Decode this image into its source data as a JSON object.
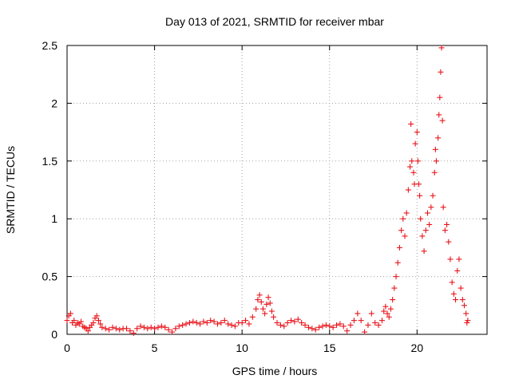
{
  "chart_data": {
    "type": "scatter",
    "title": "Day 013 of 2021, SRMTID for receiver mbar",
    "xlabel": "GPS time / hours",
    "ylabel": "SRMTID / TECUs",
    "xlim": [
      0,
      24
    ],
    "ylim": [
      0,
      2.5
    ],
    "grid": true,
    "marker": "+",
    "marker_color": "#e8141b",
    "x_ticks": [
      {
        "value": 0,
        "label": "0"
      },
      {
        "value": 5,
        "label": "5"
      },
      {
        "value": 10,
        "label": "10"
      },
      {
        "value": 15,
        "label": "15"
      },
      {
        "value": 20,
        "label": "20"
      }
    ],
    "y_ticks": [
      {
        "value": 0,
        "label": "0"
      },
      {
        "value": 0.5,
        "label": "0.5"
      },
      {
        "value": 1,
        "label": "1"
      },
      {
        "value": 1.5,
        "label": "1.5"
      },
      {
        "value": 2,
        "label": "2"
      },
      {
        "value": 2.5,
        "label": "2.5"
      }
    ],
    "series": [
      {
        "name": "SRMTID",
        "points": [
          [
            0.0,
            0.12
          ],
          [
            0.1,
            0.16
          ],
          [
            0.2,
            0.18
          ],
          [
            0.3,
            0.1
          ],
          [
            0.4,
            0.12
          ],
          [
            0.5,
            0.08
          ],
          [
            0.6,
            0.1
          ],
          [
            0.7,
            0.09
          ],
          [
            0.8,
            0.11
          ],
          [
            0.9,
            0.07
          ],
          [
            1.0,
            0.06
          ],
          [
            1.1,
            0.05
          ],
          [
            1.2,
            0.03
          ],
          [
            1.3,
            0.06
          ],
          [
            1.4,
            0.08
          ],
          [
            1.5,
            0.1
          ],
          [
            1.6,
            0.14
          ],
          [
            1.7,
            0.16
          ],
          [
            1.8,
            0.12
          ],
          [
            1.9,
            0.09
          ],
          [
            2.0,
            0.06
          ],
          [
            2.2,
            0.05
          ],
          [
            2.4,
            0.04
          ],
          [
            2.6,
            0.06
          ],
          [
            2.8,
            0.05
          ],
          [
            3.0,
            0.04
          ],
          [
            3.2,
            0.05
          ],
          [
            3.4,
            0.05
          ],
          [
            3.6,
            0.03
          ],
          [
            3.8,
            0.01
          ],
          [
            4.0,
            0.05
          ],
          [
            4.2,
            0.07
          ],
          [
            4.4,
            0.06
          ],
          [
            4.6,
            0.05
          ],
          [
            4.8,
            0.06
          ],
          [
            5.0,
            0.05
          ],
          [
            5.2,
            0.06
          ],
          [
            5.4,
            0.07
          ],
          [
            5.6,
            0.06
          ],
          [
            5.8,
            0.04
          ],
          [
            6.0,
            0.02
          ],
          [
            6.2,
            0.05
          ],
          [
            6.4,
            0.07
          ],
          [
            6.6,
            0.08
          ],
          [
            6.8,
            0.09
          ],
          [
            7.0,
            0.1
          ],
          [
            7.2,
            0.11
          ],
          [
            7.4,
            0.1
          ],
          [
            7.6,
            0.09
          ],
          [
            7.8,
            0.11
          ],
          [
            8.0,
            0.1
          ],
          [
            8.2,
            0.12
          ],
          [
            8.4,
            0.11
          ],
          [
            8.6,
            0.09
          ],
          [
            8.8,
            0.1
          ],
          [
            9.0,
            0.12
          ],
          [
            9.2,
            0.09
          ],
          [
            9.4,
            0.08
          ],
          [
            9.6,
            0.07
          ],
          [
            9.8,
            0.1
          ],
          [
            10.0,
            0.1
          ],
          [
            10.2,
            0.12
          ],
          [
            10.4,
            0.09
          ],
          [
            10.6,
            0.15
          ],
          [
            10.8,
            0.22
          ],
          [
            10.9,
            0.3
          ],
          [
            11.0,
            0.34
          ],
          [
            11.1,
            0.28
          ],
          [
            11.2,
            0.22
          ],
          [
            11.3,
            0.18
          ],
          [
            11.4,
            0.26
          ],
          [
            11.5,
            0.32
          ],
          [
            11.6,
            0.27
          ],
          [
            11.7,
            0.2
          ],
          [
            11.8,
            0.15
          ],
          [
            12.0,
            0.1
          ],
          [
            12.2,
            0.08
          ],
          [
            12.4,
            0.07
          ],
          [
            12.6,
            0.1
          ],
          [
            12.8,
            0.12
          ],
          [
            13.0,
            0.11
          ],
          [
            13.2,
            0.13
          ],
          [
            13.4,
            0.1
          ],
          [
            13.6,
            0.08
          ],
          [
            13.8,
            0.06
          ],
          [
            14.0,
            0.05
          ],
          [
            14.2,
            0.04
          ],
          [
            14.4,
            0.06
          ],
          [
            14.6,
            0.07
          ],
          [
            14.8,
            0.08
          ],
          [
            15.0,
            0.07
          ],
          [
            15.2,
            0.06
          ],
          [
            15.4,
            0.08
          ],
          [
            15.6,
            0.09
          ],
          [
            15.8,
            0.07
          ],
          [
            16.0,
            0.03
          ],
          [
            16.2,
            0.08
          ],
          [
            16.4,
            0.12
          ],
          [
            16.6,
            0.18
          ],
          [
            16.8,
            0.12
          ],
          [
            17.0,
            0.02
          ],
          [
            17.2,
            0.08
          ],
          [
            17.4,
            0.18
          ],
          [
            17.6,
            0.1
          ],
          [
            17.8,
            0.08
          ],
          [
            18.0,
            0.12
          ],
          [
            18.1,
            0.2
          ],
          [
            18.2,
            0.24
          ],
          [
            18.3,
            0.18
          ],
          [
            18.4,
            0.15
          ],
          [
            18.5,
            0.22
          ],
          [
            18.6,
            0.3
          ],
          [
            18.7,
            0.4
          ],
          [
            18.8,
            0.5
          ],
          [
            18.9,
            0.62
          ],
          [
            19.0,
            0.75
          ],
          [
            19.1,
            0.9
          ],
          [
            19.2,
            1.0
          ],
          [
            19.3,
            0.85
          ],
          [
            19.4,
            1.05
          ],
          [
            19.5,
            1.25
          ],
          [
            19.6,
            1.45
          ],
          [
            19.65,
            1.82
          ],
          [
            19.7,
            1.5
          ],
          [
            19.8,
            1.4
          ],
          [
            19.85,
            1.3
          ],
          [
            19.9,
            1.65
          ],
          [
            20.0,
            1.75
          ],
          [
            20.05,
            1.5
          ],
          [
            20.1,
            1.3
          ],
          [
            20.15,
            1.2
          ],
          [
            20.2,
            1.0
          ],
          [
            20.3,
            0.85
          ],
          [
            20.4,
            0.72
          ],
          [
            20.5,
            0.9
          ],
          [
            20.6,
            1.05
          ],
          [
            20.7,
            0.95
          ],
          [
            20.8,
            1.1
          ],
          [
            20.9,
            1.2
          ],
          [
            21.0,
            1.4
          ],
          [
            21.05,
            1.6
          ],
          [
            21.1,
            1.5
          ],
          [
            21.2,
            1.7
          ],
          [
            21.25,
            1.9
          ],
          [
            21.3,
            2.05
          ],
          [
            21.35,
            2.27
          ],
          [
            21.4,
            2.48
          ],
          [
            21.45,
            1.85
          ],
          [
            21.5,
            1.1
          ],
          [
            21.6,
            0.9
          ],
          [
            21.7,
            0.95
          ],
          [
            21.8,
            0.8
          ],
          [
            21.9,
            0.65
          ],
          [
            22.0,
            0.45
          ],
          [
            22.1,
            0.35
          ],
          [
            22.2,
            0.3
          ],
          [
            22.3,
            0.55
          ],
          [
            22.4,
            0.65
          ],
          [
            22.5,
            0.4
          ],
          [
            22.6,
            0.3
          ],
          [
            22.7,
            0.25
          ],
          [
            22.8,
            0.18
          ],
          [
            22.85,
            0.1
          ],
          [
            22.9,
            0.12
          ]
        ]
      }
    ]
  }
}
